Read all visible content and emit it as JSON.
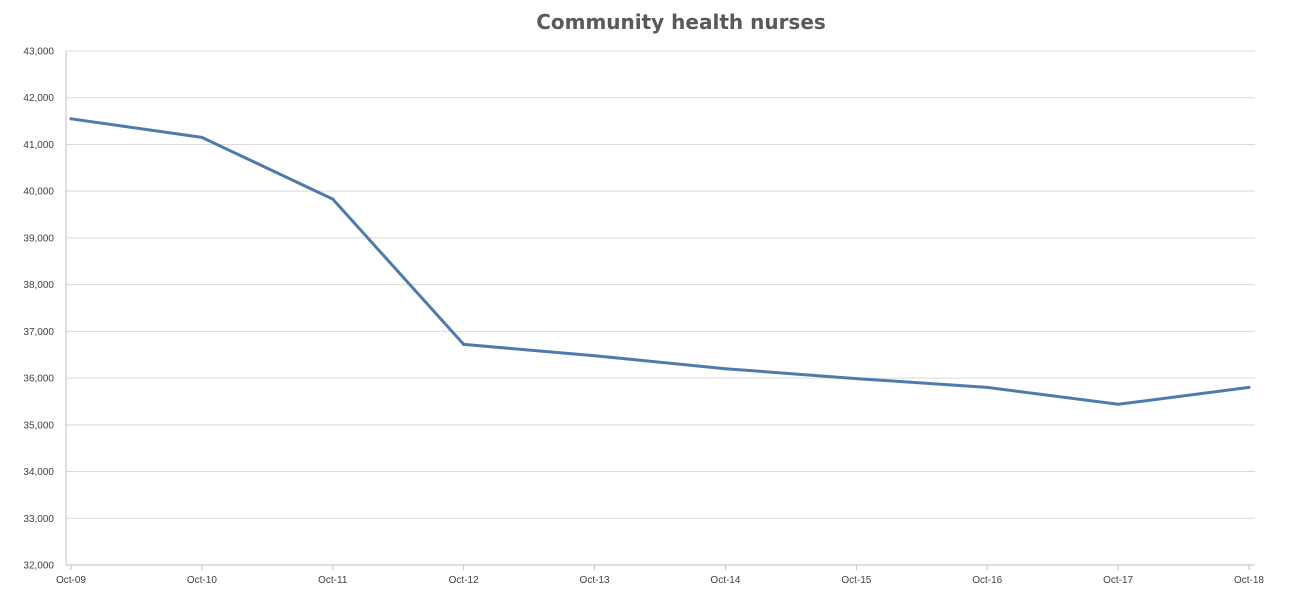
{
  "chart_data": {
    "type": "line",
    "title": "Community health nurses",
    "xlabel": "",
    "ylabel": "",
    "categories": [
      "Oct-09",
      "Oct-10",
      "Oct-11",
      "Oct-12",
      "Oct-13",
      "Oct-14",
      "Oct-15",
      "Oct-16",
      "Oct-17",
      "Oct-18"
    ],
    "series": [
      {
        "values": [
          41550,
          41150,
          39830,
          36720,
          36480,
          36200,
          35990,
          35800,
          35440,
          35800
        ]
      }
    ],
    "ylim": [
      32000,
      43000
    ],
    "yticks": [
      "32,000",
      "33,000",
      "34,000",
      "35,000",
      "36,000",
      "37,000",
      "38,000",
      "39,000",
      "40,000",
      "41,000",
      "42,000",
      "43,000"
    ],
    "grid": true,
    "legend": "none",
    "line_color": "#4e7bab"
  }
}
